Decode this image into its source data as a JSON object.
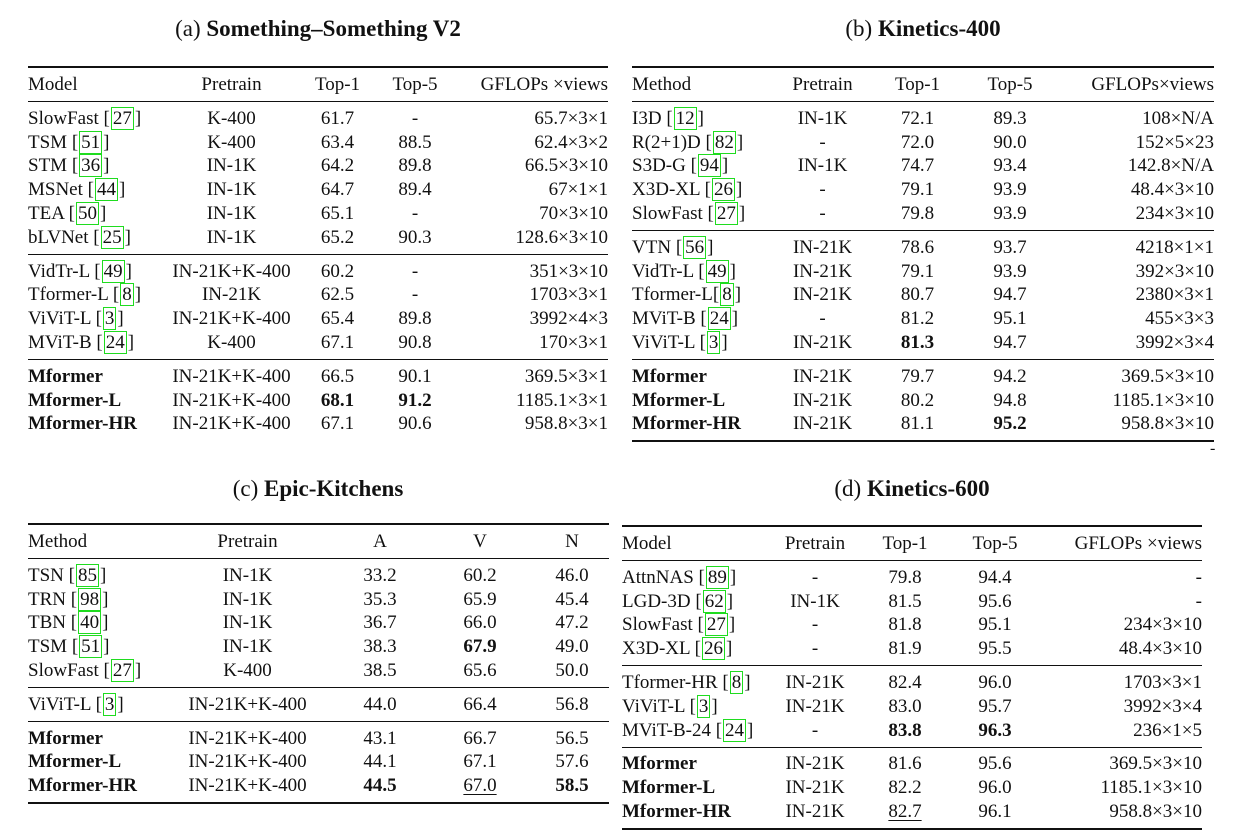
{
  "tables": [
    {
      "id": "a",
      "title_prefix": "(a)",
      "title_bold": "Something–Something V2",
      "headers": [
        "Model",
        "Pretrain",
        "Top-1",
        "Top-5",
        "GFLOPs ×views"
      ],
      "groups": [
        [
          [
            {
              "name": "SlowFast",
              "ref": "27"
            },
            "K-400",
            "61.7",
            "-",
            "65.7×3×1"
          ],
          [
            {
              "name": "TSM",
              "ref": "51"
            },
            "K-400",
            "63.4",
            "88.5",
            "62.4×3×2"
          ],
          [
            {
              "name": "STM",
              "ref": "36"
            },
            "IN-1K",
            "64.2",
            "89.8",
            "66.5×3×10"
          ],
          [
            {
              "name": "MSNet",
              "ref": "44"
            },
            "IN-1K",
            "64.7",
            "89.4",
            "67×1×1"
          ],
          [
            {
              "name": "TEA",
              "ref": "50"
            },
            "IN-1K",
            "65.1",
            "-",
            "70×3×10"
          ],
          [
            {
              "name": "bLVNet",
              "ref": "25"
            },
            "IN-1K",
            "65.2",
            "90.3",
            "128.6×3×10"
          ]
        ],
        [
          [
            {
              "name": "VidTr-L",
              "ref": "49"
            },
            "IN-21K+K-400",
            "60.2",
            "-",
            "351×3×10"
          ],
          [
            {
              "name": "Tformer-L",
              "ref": "8"
            },
            "IN-21K",
            "62.5",
            "-",
            "1703×3×1"
          ],
          [
            {
              "name": "ViViT-L",
              "ref": "3"
            },
            "IN-21K+K-400",
            "65.4",
            "89.8",
            "3992×4×3"
          ],
          [
            {
              "name": "MViT-B",
              "ref": "24"
            },
            "K-400",
            "67.1",
            "90.8",
            "170×3×1"
          ]
        ],
        [
          [
            {
              "name": "Mformer",
              "bold": true
            },
            "IN-21K+K-400",
            "66.5",
            "90.1",
            "369.5×3×1"
          ],
          [
            {
              "name": "Mformer-L",
              "bold": true
            },
            "IN-21K+K-400",
            {
              "v": "68.1",
              "bold": true
            },
            {
              "v": "91.2",
              "bold": true
            },
            "1185.1×3×1"
          ],
          [
            {
              "name": "Mformer-HR",
              "bold": true
            },
            "IN-21K+K-400",
            "67.1",
            "90.6",
            "958.8×3×1"
          ]
        ]
      ]
    },
    {
      "id": "b",
      "title_prefix": "(b)",
      "title_bold": "Kinetics-400",
      "headers": [
        "Method",
        "Pretrain",
        "Top-1",
        "Top-5",
        "GFLOPs×views"
      ],
      "groups": [
        [
          [
            {
              "name": "I3D",
              "ref": "12"
            },
            "IN-1K",
            "72.1",
            "89.3",
            "108×N/A"
          ],
          [
            {
              "name": "R(2+1)D",
              "ref": "82"
            },
            "-",
            "72.0",
            "90.0",
            "152×5×23"
          ],
          [
            {
              "name": "S3D-G",
              "ref": "94"
            },
            "IN-1K",
            "74.7",
            "93.4",
            "142.8×N/A"
          ],
          [
            {
              "name": "X3D-XL",
              "ref": "26"
            },
            "-",
            "79.1",
            "93.9",
            "48.4×3×10"
          ],
          [
            {
              "name": "SlowFast",
              "ref": "27"
            },
            "-",
            "79.8",
            "93.9",
            "234×3×10"
          ]
        ],
        [
          [
            {
              "name": "VTN",
              "ref": "56"
            },
            "IN-21K",
            "78.6",
            "93.7",
            "4218×1×1"
          ],
          [
            {
              "name": "VidTr-L",
              "ref": "49"
            },
            "IN-21K",
            "79.1",
            "93.9",
            "392×3×10"
          ],
          [
            {
              "name": "Tformer-L",
              "ref": "8",
              "tight": true
            },
            "IN-21K",
            "80.7",
            "94.7",
            "2380×3×1"
          ],
          [
            {
              "name": "MViT-B",
              "ref": "24"
            },
            "-",
            "81.2",
            "95.1",
            "455×3×3"
          ],
          [
            {
              "name": "ViViT-L",
              "ref": "3"
            },
            "IN-21K",
            {
              "v": "81.3",
              "bold": true
            },
            "94.7",
            "3992×3×4"
          ]
        ],
        [
          [
            {
              "name": "Mformer",
              "bold": true
            },
            "IN-21K",
            "79.7",
            "94.2",
            "369.5×3×10"
          ],
          [
            {
              "name": "Mformer-L",
              "bold": true
            },
            "IN-21K",
            "80.2",
            "94.8",
            "1185.1×3×10"
          ],
          [
            {
              "name": "Mformer-HR",
              "bold": true
            },
            "IN-21K",
            "81.1",
            {
              "v": "95.2",
              "bold": true
            },
            "958.8×3×10"
          ]
        ]
      ]
    },
    {
      "id": "c",
      "title_prefix": "(c)",
      "title_bold": "Epic-Kitchens",
      "headers": [
        "Method",
        "Pretrain",
        "A",
        "V",
        "N"
      ],
      "groups": [
        [
          [
            {
              "name": "TSN",
              "ref": "85"
            },
            "IN-1K",
            "33.2",
            "60.2",
            "46.0"
          ],
          [
            {
              "name": "TRN",
              "ref": "98"
            },
            "IN-1K",
            "35.3",
            "65.9",
            "45.4"
          ],
          [
            {
              "name": "TBN",
              "ref": "40"
            },
            "IN-1K",
            "36.7",
            "66.0",
            "47.2"
          ],
          [
            {
              "name": "TSM",
              "ref": "51"
            },
            "IN-1K",
            "38.3",
            {
              "v": "67.9",
              "bold": true
            },
            "49.0"
          ],
          [
            {
              "name": "SlowFast",
              "ref": "27"
            },
            "K-400",
            "38.5",
            "65.6",
            "50.0"
          ]
        ],
        [
          [
            {
              "name": "ViViT-L",
              "ref": "3"
            },
            "IN-21K+K-400",
            "44.0",
            "66.4",
            "56.8"
          ]
        ],
        [
          [
            {
              "name": "Mformer",
              "bold": true
            },
            "IN-21K+K-400",
            "43.1",
            "66.7",
            "56.5"
          ],
          [
            {
              "name": "Mformer-L",
              "bold": true
            },
            "IN-21K+K-400",
            "44.1",
            "67.1",
            "57.6"
          ],
          [
            {
              "name": "Mformer-HR",
              "bold": true
            },
            "IN-21K+K-400",
            {
              "v": "44.5",
              "bold": true
            },
            {
              "v": "67.0",
              "underline": true
            },
            {
              "v": "58.5",
              "bold": true
            }
          ]
        ]
      ]
    },
    {
      "id": "d",
      "title_prefix": "(d)",
      "title_bold": "Kinetics-600",
      "headers": [
        "Model",
        "Pretrain",
        "Top-1",
        "Top-5",
        "GFLOPs ×views"
      ],
      "groups": [
        [
          [
            {
              "name": "AttnNAS",
              "ref": "89"
            },
            "-",
            "79.8",
            "94.4",
            "-"
          ],
          [
            {
              "name": "LGD-3D",
              "ref": "62"
            },
            "IN-1K",
            "81.5",
            "95.6",
            "-"
          ],
          [
            {
              "name": "SlowFast",
              "ref": "27"
            },
            "-",
            "81.8",
            "95.1",
            "234×3×10"
          ],
          [
            {
              "name": "X3D-XL",
              "ref": "26"
            },
            "-",
            "81.9",
            "95.5",
            "48.4×3×10"
          ]
        ],
        [
          [
            {
              "name": "Tformer-HR",
              "ref": "8"
            },
            "IN-21K",
            "82.4",
            "96.0",
            "1703×3×1"
          ],
          [
            {
              "name": "ViViT-L",
              "ref": "3"
            },
            "IN-21K",
            "83.0",
            "95.7",
            "3992×3×4"
          ],
          [
            {
              "name": "MViT-B-24",
              "ref": "24"
            },
            "-",
            {
              "v": "83.8",
              "bold": true
            },
            {
              "v": "96.3",
              "bold": true
            },
            "236×1×5"
          ]
        ],
        [
          [
            {
              "name": "Mformer",
              "bold": true
            },
            "IN-21K",
            "81.6",
            "95.6",
            "369.5×3×10"
          ],
          [
            {
              "name": "Mformer-L",
              "bold": true
            },
            "IN-21K",
            "82.2",
            "96.0",
            "1185.1×3×10"
          ],
          [
            {
              "name": "Mformer-HR",
              "bold": true
            },
            "IN-21K",
            {
              "v": "82.7",
              "underline": true
            },
            "96.1",
            "958.8×3×10"
          ]
        ]
      ]
    }
  ],
  "stray_mark": "-"
}
